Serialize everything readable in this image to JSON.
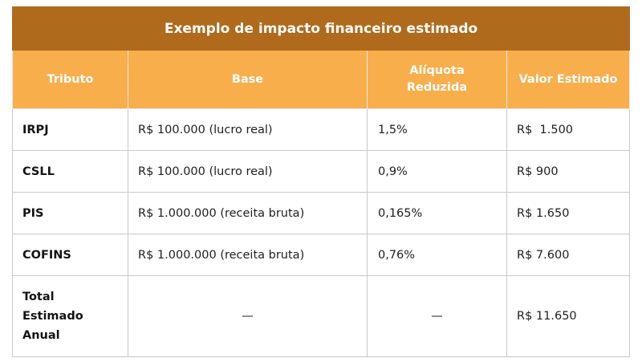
{
  "table": {
    "title": "Exemplo de impacto financeiro estimado",
    "headers": {
      "tributo": "Tributo",
      "base": "Base",
      "aliquota_line1": "Alíquota",
      "aliquota_line2": "Reduzida",
      "valor": "Valor Estimado"
    },
    "rows": [
      {
        "tributo": "IRPJ",
        "base": "R$ 100.000 (lucro real)",
        "aliquota": "1,5%",
        "valor": "R$  1.500"
      },
      {
        "tributo": "CSLL",
        "base": "R$ 100.000 (lucro real)",
        "aliquota": "0,9%",
        "valor": "R$ 900"
      },
      {
        "tributo": "PIS",
        "base": "R$ 1.000.000 (receita bruta)",
        "aliquota": "0,165%",
        "valor": "R$ 1.650"
      },
      {
        "tributo": "COFINS",
        "base": "R$ 1.000.000 (receita bruta)",
        "aliquota": "0,76%",
        "valor": "R$ 7.600"
      }
    ],
    "total": {
      "label_line1": "Total",
      "label_line2": "Estimado",
      "label_line3": "Anual",
      "base": "—",
      "aliquota": "—",
      "valor": "R$ 11.650"
    }
  },
  "colors": {
    "title_bg": "#b06a1b",
    "header_bg": "#f9ae4c",
    "border": "#c9c9c9"
  }
}
